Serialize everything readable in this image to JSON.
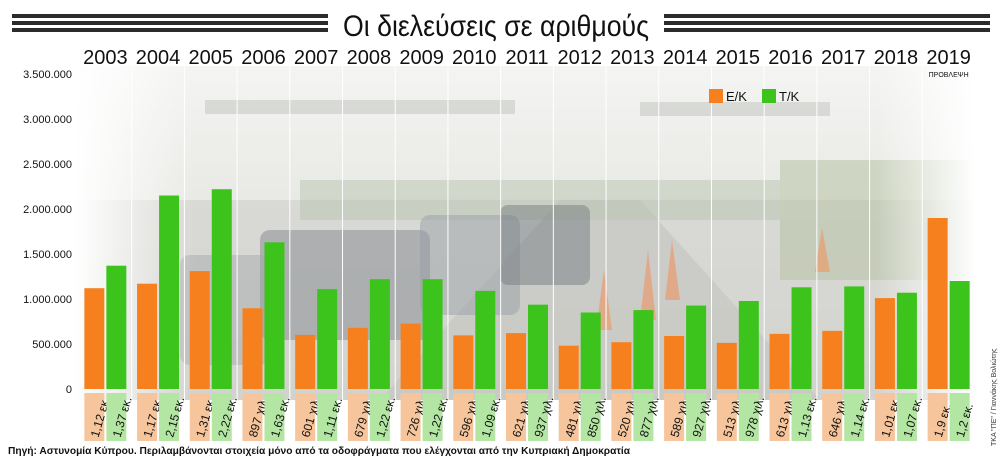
{
  "chart_data": {
    "type": "bar",
    "title": "Οι διελεύσεις σε αριθμούς",
    "categories": [
      "2003",
      "2004",
      "2005",
      "2006",
      "2007",
      "2008",
      "2009",
      "2010",
      "2011",
      "2012",
      "2013",
      "2014",
      "2015",
      "2016",
      "2017",
      "2018",
      "2019"
    ],
    "category_note": {
      "index": 16,
      "text": "ΠΡΟΒΛΕΨΗ"
    },
    "yticks": [
      "3.500.000",
      "3.000.000",
      "2.500.000",
      "2.000.000",
      "1.500.000",
      "1.000.000",
      "500.000",
      "0"
    ],
    "ylim": [
      0,
      3500000
    ],
    "legend": {
      "position": "top-right"
    },
    "series": [
      {
        "name": "Ε/Κ",
        "color": "#f7801e",
        "values": [
          1120000,
          1170000,
          1310000,
          897000,
          601000,
          679000,
          726000,
          596000,
          621000,
          481000,
          520000,
          589000,
          513000,
          613000,
          646000,
          1010000,
          1900000
        ],
        "labels": [
          "1,12 εκ.",
          "1,17 εκ.",
          "1,31 εκ.",
          "897 χιλ.",
          "601 χιλ.",
          "679 χιλ.",
          "726 χιλ.",
          "596 χιλ.",
          "621 χιλ.",
          "481 χιλ.",
          "520 χιλ.",
          "589 χιλ.",
          "513 χιλ.",
          "613 χιλ.",
          "646 χιλ.",
          "1,01 εκ.",
          "1,9 εκ."
        ]
      },
      {
        "name": "Τ/Κ",
        "color": "#3cc41c",
        "values": [
          1370000,
          2150000,
          2220000,
          1630000,
          1110000,
          1220000,
          1220000,
          1090000,
          937000,
          850000,
          877000,
          927000,
          978000,
          1130000,
          1140000,
          1070000,
          1200000
        ],
        "labels": [
          "1,37 εκ.",
          "2,15 εκ.",
          "2,22 εκ.",
          "1,63 εκ.",
          "1,11 εκ.",
          "1,22 εκ.",
          "1,22 εκ.",
          "1,09 εκ.",
          "937 χιλ.",
          "850 χιλ.",
          "877 χιλ.",
          "927 χιλ.",
          "978 χιλ.",
          "1,13 εκ.",
          "1,14 εκ.",
          "1,07 εκ.",
          "1,2 εκ."
        ]
      }
    ],
    "source": "Πηγή: Αστυνομία Κύπρου. Περιλαμβάνονται στοιχεία μόνο από τα οδοφράγματα που ελέγχονται από την Κυπριακή Δημοκρατία",
    "credit": "ΤΚΑ \"ΠΕ\" / Γιαννάκης Βολιώτης"
  }
}
